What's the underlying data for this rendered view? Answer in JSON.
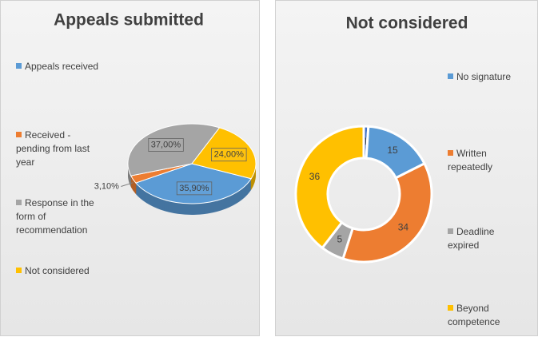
{
  "chart_data": [
    {
      "type": "pie",
      "title": "Appeals submitted",
      "categories": [
        "Appeals received",
        "Received - pending from last year",
        "Response in the form of recommendation",
        "Not considered"
      ],
      "values": [
        35.9,
        3.1,
        37,
        24
      ],
      "value_labels": [
        "35,90%",
        "3,10%",
        "37,00%",
        "24,00%"
      ],
      "colors": [
        "#5b9bd5",
        "#ed7d31",
        "#a5a5a5",
        "#ffc000"
      ],
      "legend": "left"
    },
    {
      "type": "donut",
      "title": "Not considered",
      "categories": [
        null,
        "No signature",
        "Written repeatedly",
        "Deadline expired",
        "Beyond competence"
      ],
      "values": [
        1,
        15,
        34,
        5,
        36
      ],
      "colors": [
        "#4472c4",
        "#5b9bd5",
        "#ed7d31",
        "#a5a5a5",
        "#ffc000"
      ],
      "legend": "right"
    }
  ]
}
